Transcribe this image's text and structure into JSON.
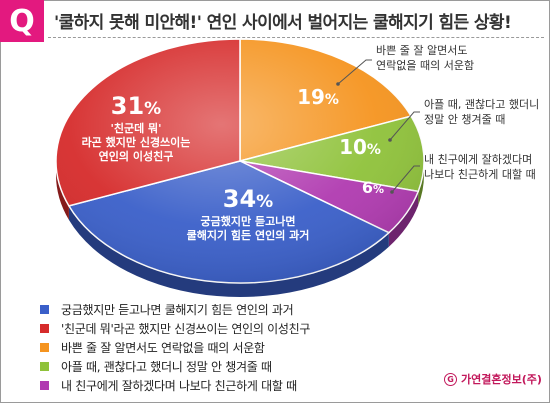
{
  "header": {
    "badge": "Q",
    "title": "'쿨하지 못해 미안해!' 연인 사이에서 벌어지는 쿨해지기 힘든 상황!"
  },
  "chart_data": {
    "type": "pie",
    "unit": "%",
    "categories": [
      "궁금했지만 듣고나면 쿨해지기 힘든 연인의 과거",
      "'친군데 뭐'라곤 했지만 신경쓰이는 연인의 이성친구",
      "바쁜 줄 잘 알면서도 연락없을 때의 서운함",
      "아플 때, 괜찮다고 했더니 정말 안 챙겨줄 때",
      "내 친구에게 잘하겠다며 나보다 친근하게 대할 때"
    ],
    "values": [
      34,
      31,
      19,
      10,
      6
    ],
    "colors": [
      "#3a5fc9",
      "#d62b2b",
      "#f5941f",
      "#8fc23a",
      "#b03ab0"
    ],
    "slice_labels": [
      [
        "궁금했지만 듣고나면",
        "쿨해지기 힘든 연인의 과거"
      ],
      [
        "'친군데 뭐'",
        "라곤 했지만 신경쓰이는",
        "연인의 이성친구"
      ],
      [
        "바쁜 줄 잘 알면서도",
        "연락없을 때의 서운함"
      ],
      [
        "아플 때, 괜찮다고 했더니",
        "정말 안 챙겨줄 때"
      ],
      [
        "내 친구에게 잘하겠다며",
        "나보다 친근하게 대할 때"
      ]
    ],
    "legend_placement": "bottom-left"
  },
  "legend": {
    "items": [
      "궁금했지만 듣고나면 쿨해지기 힘든 연인의 과거",
      "'친군데 뭐'라곤 했지만 신경쓰이는 연인의 이성친구",
      "바쁜 줄 잘 알면서도 연락없을 때의 서운함",
      "아플 때, 괜찮다고 했더니 정말 안 챙겨줄 때",
      "내 친구에게 잘하겠다며 나보다 친근하게 대할 때"
    ]
  },
  "footer": {
    "brand": "가연결혼정보(주)",
    "brand_icon": "gayeon-logo-icon",
    "brand_icon_glyph": "G"
  }
}
